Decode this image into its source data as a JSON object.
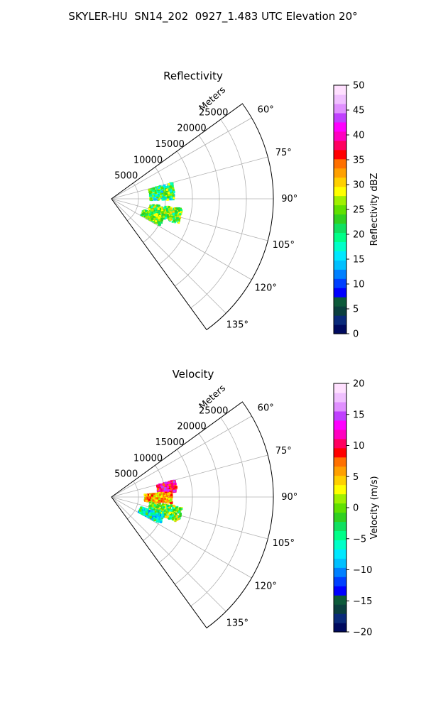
{
  "title": "SKYLER-HU  SN14_202  0927_1.483 UTC Elevation 20°",
  "chart_data": [
    {
      "type": "polar-sector",
      "title": "Reflectivity",
      "radial_label": "Meters",
      "radial_ticks": [
        "5000",
        "10000",
        "15000",
        "20000",
        "25000"
      ],
      "radial_values": [
        5000,
        10000,
        15000,
        20000,
        25000
      ],
      "rmax": 30000,
      "angle_ticks": [
        "60°",
        "75°",
        "90°",
        "105°",
        "120°",
        "135°"
      ],
      "angle_values": [
        60,
        75,
        90,
        105,
        120,
        135
      ],
      "angle_range": [
        54,
        144
      ],
      "colorbar": {
        "label": "Reflectivity dBZ",
        "min": 0,
        "max": 50,
        "ticks": [
          "0",
          "5",
          "10",
          "15",
          "20",
          "25",
          "30",
          "35",
          "40",
          "45",
          "50"
        ],
        "tick_values": [
          0,
          5,
          10,
          15,
          20,
          25,
          30,
          35,
          40,
          45,
          50
        ],
        "colors": [
          "#000a5f",
          "#0a2a7a",
          "#0b3f3f",
          "#0d5a3a",
          "#0000ff",
          "#0040ff",
          "#0080ff",
          "#00c0ff",
          "#00e8ff",
          "#00ffc8",
          "#00ff88",
          "#10e060",
          "#30d020",
          "#60e000",
          "#a0f000",
          "#ffff00",
          "#ffd000",
          "#ffa000",
          "#ff7000",
          "#ff0000",
          "#ff0060",
          "#ff00c0",
          "#ff00ff",
          "#c040ff",
          "#e090ff",
          "#f0c0ff",
          "#ffe0ff"
        ]
      },
      "echoes": [
        {
          "range": [
            7000,
            11500
          ],
          "azimuth": [
            74,
            90
          ],
          "level": "green-cyan",
          "core_dBZ": 25
        },
        {
          "range": [
            7000,
            13000
          ],
          "azimuth": [
            97,
            110
          ],
          "level": "green-yellow",
          "core_dBZ": 25
        },
        {
          "range": [
            6000,
            10000
          ],
          "azimuth": [
            108,
            118
          ],
          "level": "green",
          "core_dBZ": 22
        }
      ]
    },
    {
      "type": "polar-sector",
      "title": "Velocity",
      "radial_label": "Meters",
      "radial_ticks": [
        "5000",
        "10000",
        "15000",
        "20000",
        "25000"
      ],
      "radial_values": [
        5000,
        10000,
        15000,
        20000,
        25000
      ],
      "rmax": 30000,
      "angle_ticks": [
        "60°",
        "75°",
        "90°",
        "105°",
        "120°",
        "135°"
      ],
      "angle_values": [
        60,
        75,
        90,
        105,
        120,
        135
      ],
      "angle_range": [
        54,
        144
      ],
      "colorbar": {
        "label": "Velocity (m/s)",
        "min": -20,
        "max": 20,
        "ticks": [
          "−20",
          "−15",
          "−10",
          "−5",
          "0",
          "5",
          "10",
          "15",
          "20"
        ],
        "tick_values": [
          -20,
          -15,
          -10,
          -5,
          0,
          5,
          10,
          15,
          20
        ],
        "colors": [
          "#000a5f",
          "#0a2a7a",
          "#0b3f3f",
          "#0d5a3a",
          "#0000ff",
          "#0040ff",
          "#0080ff",
          "#00c0ff",
          "#00e8ff",
          "#00ffc8",
          "#00ff88",
          "#10e060",
          "#30d020",
          "#60e000",
          "#a0f000",
          "#ffff00",
          "#ffd000",
          "#ffa000",
          "#ff7000",
          "#ff0000",
          "#ff0060",
          "#ff00c0",
          "#ff00ff",
          "#c040ff",
          "#e090ff",
          "#f0c0ff",
          "#ffe0ff"
        ]
      },
      "echoes": [
        {
          "range": [
            8500,
            12000
          ],
          "azimuth": [
            74,
            84
          ],
          "level": "magenta-red",
          "velocity": 12
        },
        {
          "range": [
            6000,
            11000
          ],
          "azimuth": [
            84,
            95
          ],
          "level": "orange-yellow",
          "velocity": 3
        },
        {
          "range": [
            7000,
            13000
          ],
          "azimuth": [
            97,
            110
          ],
          "level": "green-yellow",
          "velocity": -4
        },
        {
          "range": [
            5500,
            10000
          ],
          "azimuth": [
            108,
            118
          ],
          "level": "cyan-green",
          "velocity": -11
        }
      ]
    }
  ]
}
